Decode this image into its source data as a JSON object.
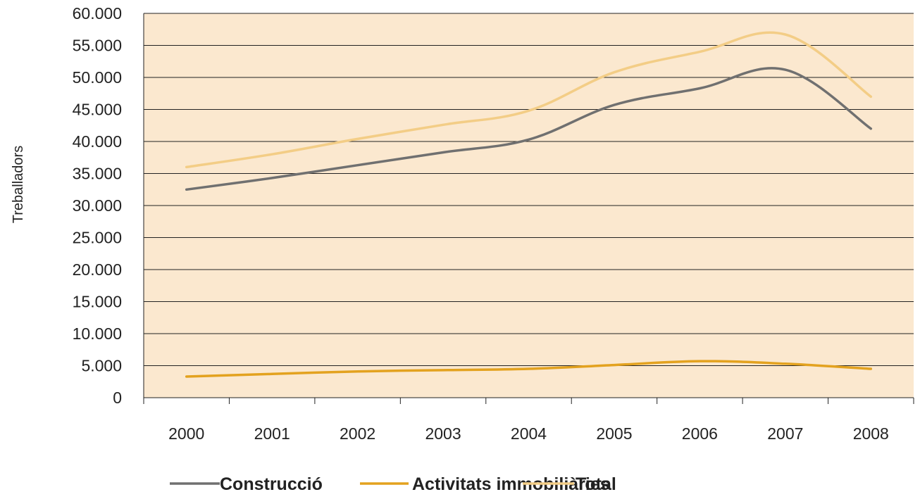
{
  "chart_data": {
    "type": "line",
    "title": "",
    "xlabel": "",
    "ylabel": "Treballadors",
    "ylim": [
      0,
      60000
    ],
    "yticks": [
      "0",
      "5.000",
      "10.000",
      "15.000",
      "20.000",
      "25.000",
      "30.000",
      "35.000",
      "40.000",
      "45.000",
      "50.000",
      "55.000",
      "60.000"
    ],
    "x": [
      "2000",
      "2001",
      "2002",
      "2003",
      "2004",
      "2005",
      "2006",
      "2007",
      "2008"
    ],
    "grid": true,
    "legend_position": "bottom",
    "plot_background": "#fbe8cf",
    "series": [
      {
        "name": "Construcció",
        "color": "#707070",
        "values": [
          32500,
          34300,
          36300,
          38300,
          40300,
          45700,
          48300,
          51200,
          42000
        ]
      },
      {
        "name": "Activitats immobiliàries",
        "color": "#e3a21f",
        "values": [
          3300,
          3700,
          4100,
          4300,
          4500,
          5100,
          5700,
          5300,
          4500
        ]
      },
      {
        "name": "Total",
        "color": "#f3cd86",
        "values": [
          36000,
          38000,
          40400,
          42600,
          44800,
          50800,
          54000,
          56700,
          47000
        ]
      }
    ]
  }
}
